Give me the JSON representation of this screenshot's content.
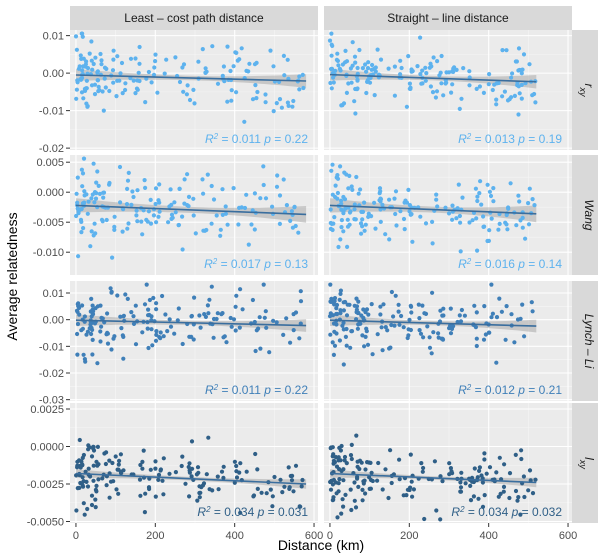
{
  "chart_data": {
    "type": "scatter",
    "xlabel": "Distance (km)",
    "ylabel": "Average relatedness",
    "x_ticks": [
      "0",
      "200",
      "400",
      "600"
    ],
    "x_range": [
      -15,
      610
    ],
    "grid": true,
    "columns": [
      {
        "key": "lcp",
        "label": "Least – cost path distance"
      },
      {
        "key": "sld",
        "label": "Straight – line distance"
      }
    ],
    "rows": [
      {
        "key": "rxy",
        "strip_main": "r",
        "strip_sub": "xy",
        "color": "#5DB2EE",
        "y_range": [
          -0.0205,
          0.0115
        ],
        "y_ticks": [
          0.01,
          0.0,
          -0.01,
          -0.02
        ],
        "y_tick_labels": [
          "0.01",
          "0.00",
          "-0.01",
          "-0.02"
        ],
        "panels": [
          {
            "r2": "0.011",
            "p": "0.22",
            "fit": [
              [
                0,
                -0.0005
              ],
              [
                580,
                -0.0021
              ]
            ],
            "band": [
              0.0016,
              0.0006,
              0.0018
            ]
          },
          {
            "r2": "0.013",
            "p": "0.19",
            "fit": [
              [
                0,
                -0.0004
              ],
              [
                520,
                -0.0023
              ]
            ],
            "band": [
              0.0016,
              0.0006,
              0.0018
            ]
          }
        ]
      },
      {
        "key": "wang",
        "strip_main": "Wang",
        "strip_sub": "",
        "color": "#5DB2EE",
        "y_range": [
          -0.0138,
          0.0062
        ],
        "y_ticks": [
          0.005,
          0.0,
          -0.005,
          -0.01
        ],
        "y_tick_labels": [
          "0.005",
          "0.000",
          "-0.005",
          "-0.010"
        ],
        "panels": [
          {
            "r2": "0.017",
            "p": "0.13",
            "fit": [
              [
                0,
                -0.0022
              ],
              [
                580,
                -0.0037
              ]
            ],
            "band": [
              0.0012,
              0.0005,
              0.0014
            ]
          },
          {
            "r2": "0.016",
            "p": "0.14",
            "fit": [
              [
                0,
                -0.0022
              ],
              [
                520,
                -0.0036
              ]
            ],
            "band": [
              0.0012,
              0.0005,
              0.0014
            ]
          }
        ]
      },
      {
        "key": "lynchli",
        "strip_main": "Lynch – Li",
        "strip_sub": "",
        "color": "#3F7FB8",
        "y_range": [
          -0.0305,
          0.0145
        ],
        "y_ticks": [
          0.01,
          0.0,
          -0.01,
          -0.02,
          -0.03
        ],
        "y_tick_labels": [
          "0.01",
          "0.00",
          "-0.01",
          "-0.02",
          "-0.03"
        ],
        "panels": [
          {
            "r2": "0.011",
            "p": "0.22",
            "fit": [
              [
                0,
                -0.0002
              ],
              [
                580,
                -0.0022
              ]
            ],
            "band": [
              0.0022,
              0.0008,
              0.0024
            ]
          },
          {
            "r2": "0.012",
            "p": "0.21",
            "fit": [
              [
                0,
                -0.0002
              ],
              [
                520,
                -0.0024
              ]
            ],
            "band": [
              0.0022,
              0.0008,
              0.0024
            ]
          }
        ]
      },
      {
        "key": "lxy",
        "strip_main": "l",
        "strip_sub": "xy",
        "color": "#2F5F87",
        "y_range": [
          -0.0051,
          0.0029
        ],
        "y_ticks": [
          0.0025,
          0.0,
          -0.0025,
          -0.005
        ],
        "y_tick_labels": [
          "0.0025",
          "0.0000",
          "-0.0025",
          "-0.0050"
        ],
        "panels": [
          {
            "r2": "0.034",
            "p": "0.031",
            "fit": [
              [
                0,
                -0.0018
              ],
              [
                580,
                -0.0025
              ]
            ],
            "band": [
              0.00028,
              0.00012,
              0.00032
            ]
          },
          {
            "r2": "0.034",
            "p": "0.032",
            "fit": [
              [
                0,
                -0.0018
              ],
              [
                520,
                -0.0024
              ]
            ],
            "band": [
              0.00028,
              0.00012,
              0.00032
            ]
          }
        ]
      }
    ]
  }
}
